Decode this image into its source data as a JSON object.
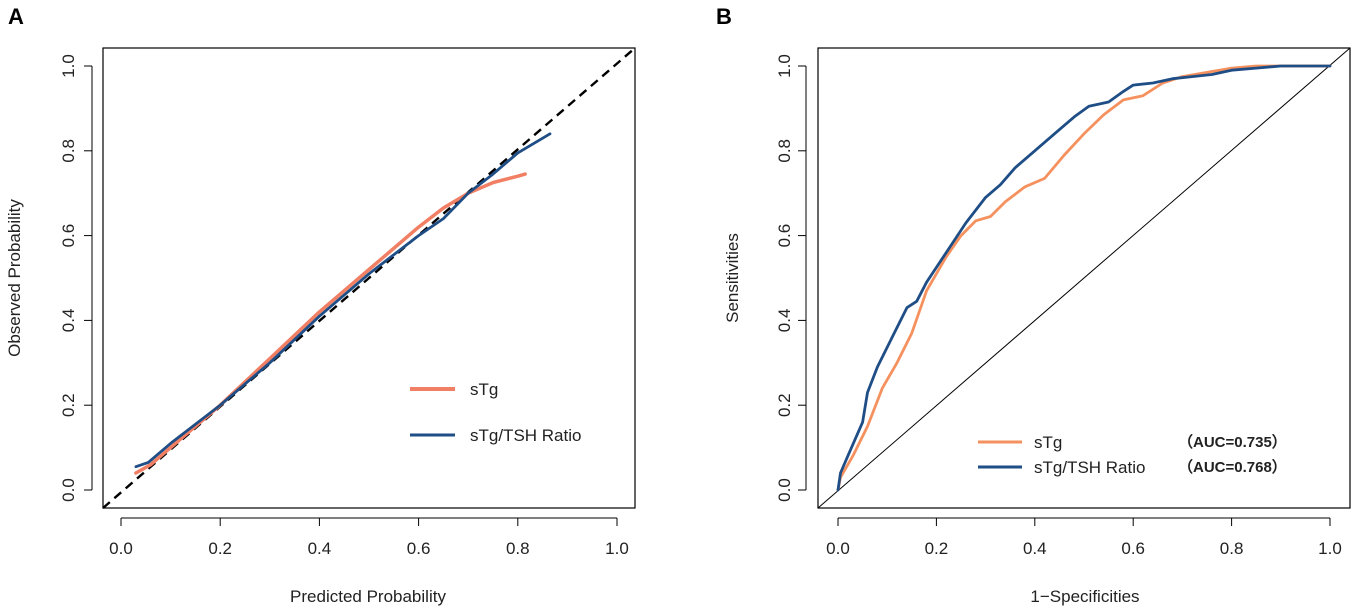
{
  "chart_data": [
    {
      "type": "line",
      "panel": "A",
      "title": "",
      "xlabel": "Predicted Probability",
      "ylabel": "Observed Probability",
      "xlim": [
        0,
        1
      ],
      "ylim": [
        0,
        1
      ],
      "xticks": [
        "0.0",
        "0.2",
        "0.4",
        "0.6",
        "0.8",
        "1.0"
      ],
      "yticks": [
        "0.0",
        "0.2",
        "0.4",
        "0.6",
        "0.8",
        "1.0"
      ],
      "reference_line": "dashed diagonal y = x",
      "legend": [
        "sTg",
        "sTg/TSH Ratio"
      ],
      "series": [
        {
          "name": "sTg",
          "color": "#F07F64",
          "x": [
            0.03,
            0.06,
            0.1,
            0.2,
            0.3,
            0.4,
            0.5,
            0.6,
            0.65,
            0.7,
            0.75,
            0.8,
            0.815
          ],
          "y": [
            0.04,
            0.06,
            0.1,
            0.2,
            0.31,
            0.42,
            0.52,
            0.62,
            0.665,
            0.7,
            0.725,
            0.74,
            0.745
          ]
        },
        {
          "name": "sTg/TSH Ratio",
          "color": "#1F4E86",
          "x": [
            0.03,
            0.055,
            0.1,
            0.2,
            0.3,
            0.4,
            0.5,
            0.6,
            0.65,
            0.7,
            0.75,
            0.8,
            0.865
          ],
          "y": [
            0.055,
            0.065,
            0.11,
            0.2,
            0.3,
            0.41,
            0.51,
            0.6,
            0.64,
            0.7,
            0.745,
            0.795,
            0.84
          ]
        }
      ]
    },
    {
      "type": "line",
      "panel": "B",
      "title": "",
      "xlabel": "1−Specificities",
      "ylabel": "Sensitivities",
      "xlim": [
        0,
        1
      ],
      "ylim": [
        0,
        1
      ],
      "xticks": [
        "0.0",
        "0.2",
        "0.4",
        "0.6",
        "0.8",
        "1.0"
      ],
      "yticks": [
        "0.0",
        "0.2",
        "0.4",
        "0.6",
        "0.8",
        "1.0"
      ],
      "reference_line": "solid diagonal y = x",
      "legend": [
        "sTg",
        "sTg/TSH Ratio"
      ],
      "annotations": [
        "（AUC=0.735）",
        "（AUC=0.768）"
      ],
      "series": [
        {
          "name": "sTg",
          "auc": 0.735,
          "color": "#F5915E",
          "x": [
            0.0,
            0.005,
            0.03,
            0.06,
            0.09,
            0.12,
            0.15,
            0.18,
            0.22,
            0.25,
            0.28,
            0.31,
            0.34,
            0.38,
            0.42,
            0.46,
            0.5,
            0.54,
            0.58,
            0.62,
            0.66,
            0.7,
            0.75,
            0.8,
            0.85,
            0.9,
            0.95,
            1.0
          ],
          "y": [
            0.0,
            0.03,
            0.08,
            0.15,
            0.24,
            0.3,
            0.37,
            0.47,
            0.55,
            0.6,
            0.635,
            0.645,
            0.68,
            0.715,
            0.735,
            0.79,
            0.84,
            0.885,
            0.92,
            0.93,
            0.96,
            0.975,
            0.985,
            0.995,
            1.0,
            1.0,
            1.0,
            1.0
          ]
        },
        {
          "name": "sTg/TSH Ratio",
          "auc": 0.768,
          "color": "#1F4E86",
          "x": [
            0.0,
            0.005,
            0.02,
            0.05,
            0.06,
            0.08,
            0.11,
            0.14,
            0.16,
            0.18,
            0.22,
            0.26,
            0.3,
            0.33,
            0.36,
            0.4,
            0.44,
            0.48,
            0.51,
            0.55,
            0.58,
            0.6,
            0.64,
            0.68,
            0.72,
            0.76,
            0.8,
            0.85,
            0.9,
            0.95,
            1.0
          ],
          "y": [
            0.0,
            0.04,
            0.08,
            0.16,
            0.23,
            0.29,
            0.36,
            0.43,
            0.445,
            0.49,
            0.56,
            0.63,
            0.69,
            0.72,
            0.76,
            0.8,
            0.84,
            0.88,
            0.905,
            0.915,
            0.94,
            0.955,
            0.96,
            0.97,
            0.975,
            0.98,
            0.99,
            0.995,
            1.0,
            1.0,
            1.0
          ]
        }
      ]
    }
  ]
}
